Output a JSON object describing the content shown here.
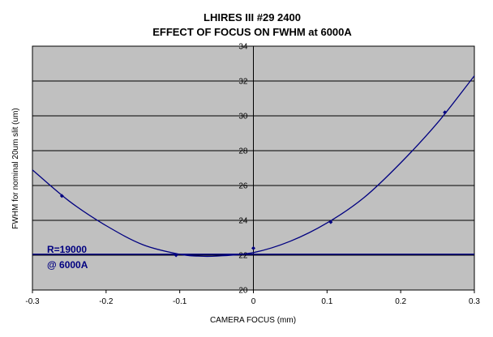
{
  "chart_data": {
    "type": "scatter",
    "title": "LHIRES III  #29   2400",
    "subtitle": "EFFECT OF FOCUS ON FWHM at 6000A",
    "xlabel": "CAMERA FOCUS (mm)",
    "ylabel": "FWHM for nominal 20um slit (um)",
    "xlim": [
      -0.3,
      0.3
    ],
    "ylim": [
      20,
      34
    ],
    "xticks": [
      -0.3,
      -0.2,
      -0.1,
      0,
      0.1,
      0.2,
      0.3
    ],
    "xtick_labels": [
      "-0.3",
      "-0.2",
      "-0.1",
      "0",
      "0.1",
      "0.2",
      "0.3"
    ],
    "yticks": [
      20,
      22,
      24,
      26,
      28,
      30,
      32,
      34
    ],
    "ytick_labels": [
      "20",
      "22",
      "24",
      "26",
      "28",
      "30",
      "32",
      "34"
    ],
    "grid": "horizontal",
    "plot_background": "#c0c0c0",
    "series_color": "#000080",
    "series": [
      {
        "points": [
          {
            "x": -0.26,
            "y": 25.4
          },
          {
            "x": -0.105,
            "y": 22.0
          },
          {
            "x": 0.0,
            "y": 22.4
          },
          {
            "x": 0.105,
            "y": 23.9
          },
          {
            "x": 0.26,
            "y": 30.2
          }
        ]
      }
    ],
    "fit_curve": {
      "x": [
        -0.3,
        -0.25,
        -0.2,
        -0.15,
        -0.1,
        -0.075,
        -0.05,
        0.0,
        0.05,
        0.1,
        0.15,
        0.2,
        0.25,
        0.3
      ],
      "y": [
        26.9,
        25.1,
        23.7,
        22.6,
        22.05,
        21.95,
        21.95,
        22.15,
        22.8,
        23.85,
        25.3,
        27.3,
        29.6,
        32.3
      ]
    },
    "reference_line": {
      "y": 22.05
    },
    "annotation": {
      "line1": "R=19000",
      "line2": "@ 6000A"
    }
  }
}
